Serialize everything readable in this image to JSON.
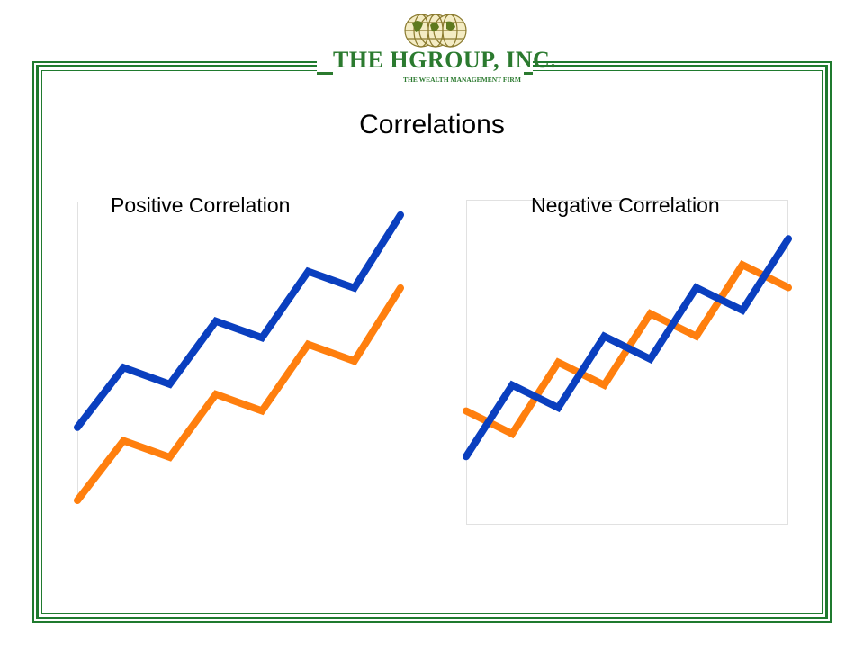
{
  "logo": {
    "name": "THE HGROUP, INC.",
    "tagline": "THE WEALTH MANAGEMENT FIRM"
  },
  "slide": {
    "title": "Correlations"
  },
  "colors": {
    "frame": "#1f7a2e",
    "blue": "#0a3fbf",
    "orange": "#ff7f0e"
  },
  "chart_data": [
    {
      "type": "line",
      "title": "Positive Correlation",
      "x": [
        0,
        1,
        2,
        3,
        4,
        5,
        6,
        7
      ],
      "series": [
        {
          "color": "#0a3fbf",
          "values": [
            2.2,
            4.0,
            3.5,
            5.4,
            4.9,
            6.9,
            6.4,
            8.6
          ]
        },
        {
          "color": "#ff7f0e",
          "values": [
            0.0,
            1.8,
            1.3,
            3.2,
            2.7,
            4.7,
            4.2,
            6.4
          ]
        }
      ],
      "ylim": [
        0,
        9
      ],
      "grid": false
    },
    {
      "type": "line",
      "title": "Negative Correlation",
      "x": [
        0,
        1,
        2,
        3,
        4,
        5,
        6,
        7
      ],
      "series": [
        {
          "color": "#ff7f0e",
          "values": [
            3.5,
            2.8,
            5.0,
            4.3,
            6.5,
            5.8,
            8.0,
            7.3
          ]
        },
        {
          "color": "#0a3fbf",
          "values": [
            2.1,
            4.3,
            3.6,
            5.8,
            5.1,
            7.3,
            6.6,
            8.8
          ]
        }
      ],
      "ylim": [
        0,
        10
      ],
      "grid": false
    }
  ]
}
